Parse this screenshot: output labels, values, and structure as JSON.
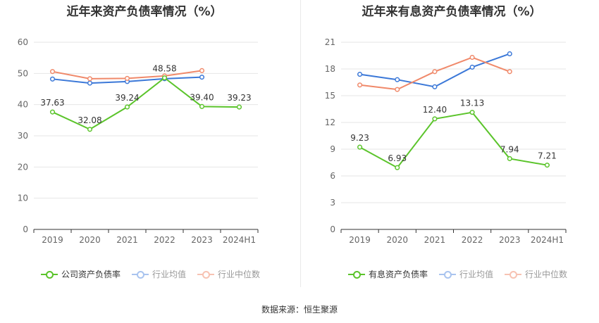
{
  "source_label": "数据来源：恒生聚源",
  "chart_data": [
    {
      "type": "line",
      "title": "近年来资产负债率情况（%）",
      "categories": [
        "2019",
        "2020",
        "2021",
        "2022",
        "2023",
        "2024H1"
      ],
      "ylim": [
        0,
        60
      ],
      "yticks": [
        0,
        10,
        20,
        30,
        40,
        50,
        60
      ],
      "grid": true,
      "legend_position": "bottom",
      "series": [
        {
          "name": "公司资产负债率",
          "color": "#5bc42b",
          "labeled": true,
          "values": [
            37.63,
            32.08,
            39.24,
            48.58,
            39.4,
            39.23
          ],
          "labels": [
            "37.63",
            "32.08",
            "39.24",
            "48.58",
            "39.40",
            "39.23"
          ]
        },
        {
          "name": "行业均值",
          "color": "#3b78d8",
          "labeled": false,
          "values": [
            48.2,
            46.9,
            47.4,
            48.3,
            48.8,
            null
          ]
        },
        {
          "name": "行业中位数",
          "color": "#f0896a",
          "labeled": false,
          "values": [
            50.6,
            48.3,
            48.4,
            49.2,
            50.9,
            null
          ]
        }
      ]
    },
    {
      "type": "line",
      "title": "近年来有息资产负债率情况（%）",
      "categories": [
        "2019",
        "2020",
        "2021",
        "2022",
        "2023",
        "2024H1"
      ],
      "ylim": [
        0,
        21
      ],
      "yticks": [
        0,
        3,
        6,
        9,
        12,
        15,
        18,
        21
      ],
      "grid": true,
      "legend_position": "bottom",
      "series": [
        {
          "name": "有息资产负债率",
          "color": "#5bc42b",
          "labeled": true,
          "values": [
            9.23,
            6.93,
            12.4,
            13.13,
            7.94,
            7.21
          ],
          "labels": [
            "9.23",
            "6.93",
            "12.40",
            "13.13",
            "7.94",
            "7.21"
          ]
        },
        {
          "name": "行业均值",
          "color": "#3b78d8",
          "labeled": false,
          "values": [
            17.4,
            16.8,
            16.0,
            18.2,
            19.7,
            null
          ]
        },
        {
          "name": "行业中位数",
          "color": "#f0896a",
          "labeled": false,
          "values": [
            16.2,
            15.7,
            17.7,
            19.3,
            17.7,
            null
          ]
        }
      ]
    }
  ]
}
